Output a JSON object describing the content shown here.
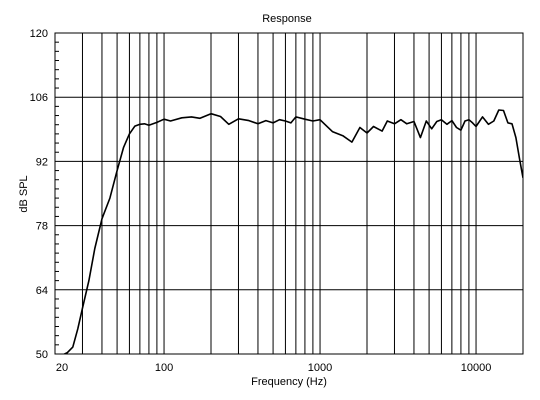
{
  "chart_data": {
    "type": "line",
    "title": "Response",
    "xlabel": "Frequency (Hz)",
    "ylabel": "dB SPL",
    "xscale": "log",
    "xlim": [
      20,
      20000
    ],
    "ylim": [
      50,
      120
    ],
    "x_tick_labels": [
      "20",
      "100",
      "1000",
      "10000"
    ],
    "x_tick_values": [
      20,
      100,
      1000,
      10000
    ],
    "y_ticks": [
      50,
      64,
      78,
      92,
      106,
      120
    ],
    "grid": true,
    "line_color": "#000000",
    "series": [
      {
        "x": [
          20,
          24,
          26,
          28,
          30,
          33,
          36,
          40,
          45,
          50,
          55,
          60,
          65,
          70,
          75,
          80,
          90,
          100,
          110,
          130,
          150,
          170,
          200,
          230,
          260,
          300,
          350,
          400,
          450,
          500,
          550,
          600,
          650,
          700,
          800,
          900,
          1000,
          1200,
          1400,
          1600,
          1800,
          2000,
          2200,
          2500,
          2700,
          3000,
          3300,
          3600,
          4000,
          4400,
          4800,
          5200,
          5600,
          6000,
          6500,
          7000,
          7500,
          8000,
          8500,
          9000,
          9500,
          10000,
          11000,
          12000,
          13000,
          14000,
          15000,
          16000,
          17000,
          18000,
          19000,
          20000
        ],
        "y": [
          49,
          50.3,
          51.5,
          55.5,
          60,
          66,
          73,
          79.5,
          84,
          90,
          95,
          98,
          99.7,
          100.1,
          100.2,
          99.9,
          100.5,
          101.2,
          100.8,
          101.5,
          101.7,
          101.4,
          102.4,
          101.8,
          100.1,
          101.3,
          100.9,
          100.2,
          100.9,
          100.4,
          101.1,
          100.8,
          100.4,
          101.7,
          101.2,
          100.8,
          101.1,
          98.5,
          97.6,
          96.2,
          99.4,
          98.2,
          99.6,
          98.6,
          100.8,
          100.2,
          101.1,
          100.2,
          100.7,
          97.2,
          100.8,
          99.1,
          100.7,
          101.1,
          100.1,
          100.9,
          99.4,
          98.8,
          100.8,
          101.1,
          100.4,
          99.6,
          101.7,
          100.1,
          100.8,
          103.2,
          103.1,
          100.4,
          100.2,
          97.2,
          92.6,
          88.4
        ]
      }
    ]
  }
}
